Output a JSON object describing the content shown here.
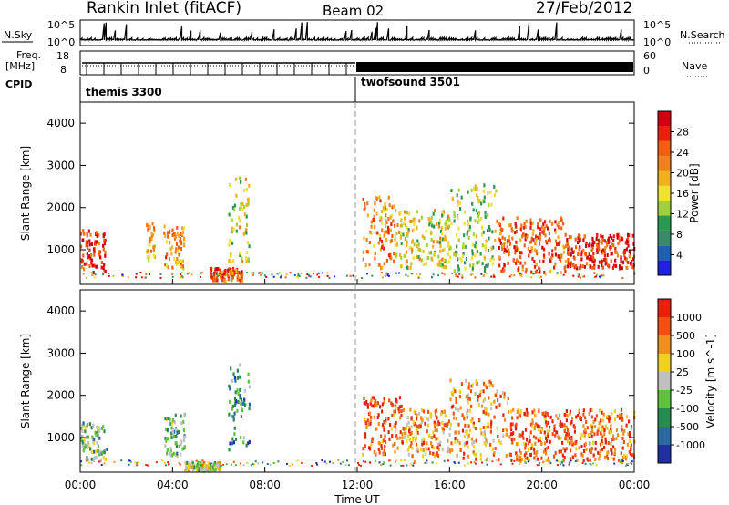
{
  "header": {
    "title": "Rankin Inlet (fitACF)",
    "beam": "Beam 02",
    "date": "27/Feb/2012"
  },
  "top_panels": {
    "nsky_label": "N.Sky",
    "nsearch_label": "N.Search",
    "nsky_ticks": [
      "10^5",
      "10^0"
    ],
    "nsearch_ticks": [
      "10^5",
      "10^0"
    ],
    "freq_label_top": "Freq.",
    "freq_label_bottom": "[MHz]",
    "freq_ticks": [
      "18",
      "8"
    ],
    "nave_label": "Nave",
    "nave_ticks": [
      "60",
      "0"
    ],
    "cpid_label": "CPID",
    "cpid_segments": [
      "themis 3300",
      "twofsound 3501"
    ]
  },
  "x_axis": {
    "label": "Time UT",
    "ticks": [
      "00:00",
      "04:00",
      "08:00",
      "12:00",
      "16:00",
      "20:00",
      "00:00"
    ]
  },
  "chart_data": [
    {
      "type": "heatmap",
      "panel": "power",
      "ylabel": "Slant Range [km]",
      "yticks": [
        1000,
        2000,
        3000,
        4000
      ],
      "ylim": [
        180,
        4500
      ],
      "xlim_hours": [
        0,
        24
      ],
      "colorbar": {
        "label": "Power [dB]",
        "ticks": [
          "28",
          "24",
          "20",
          "16",
          "12",
          "8",
          "4"
        ],
        "colors": [
          "#2020e0",
          "#2060b0",
          "#3a8a6a",
          "#2a9a50",
          "#a0d040",
          "#f0e030",
          "#f0b020",
          "#f08020",
          "#f06010",
          "#e82010",
          "#d00010"
        ]
      },
      "regions": [
        {
          "t0": 0.0,
          "t1": 1.1,
          "r0": 500,
          "r1": 1500,
          "level": 9
        },
        {
          "t0": 2.8,
          "t1": 3.2,
          "r0": 800,
          "r1": 1700,
          "level": 6
        },
        {
          "t0": 3.6,
          "t1": 4.5,
          "r0": 600,
          "r1": 1600,
          "level": 7
        },
        {
          "t0": 5.6,
          "t1": 7.0,
          "r0": 300,
          "r1": 600,
          "level": 8
        },
        {
          "t0": 6.4,
          "t1": 7.3,
          "r0": 700,
          "r1": 2800,
          "level": 5
        },
        {
          "t0": 12.2,
          "t1": 13.6,
          "r0": 600,
          "r1": 2300,
          "level": 7
        },
        {
          "t0": 13.6,
          "t1": 16.0,
          "r0": 600,
          "r1": 2000,
          "level": 5
        },
        {
          "t0": 16.0,
          "t1": 18.0,
          "r0": 500,
          "r1": 2600,
          "level": 4
        },
        {
          "t0": 18.0,
          "t1": 21.0,
          "r0": 500,
          "r1": 1800,
          "level": 8
        },
        {
          "t0": 21.0,
          "t1": 24.0,
          "r0": 600,
          "r1": 1400,
          "level": 9
        }
      ]
    },
    {
      "type": "heatmap",
      "panel": "velocity",
      "ylabel": "Slant Range [km]",
      "yticks": [
        1000,
        2000,
        3000,
        4000
      ],
      "ylim": [
        180,
        4500
      ],
      "xlim_hours": [
        0,
        24
      ],
      "colorbar": {
        "label": "Velocity [m s^-1]",
        "ticks": [
          "1000",
          "500",
          "100",
          "25",
          "-25",
          "-100",
          "-500",
          "-1000"
        ],
        "colors": [
          "#2030a0",
          "#2a6aa0",
          "#2a8a50",
          "#60c040",
          "#c0c0c0",
          "#f0d020",
          "#f09020",
          "#f05010",
          "#e82010"
        ]
      },
      "regions": [
        {
          "t0": 0.0,
          "t1": 1.1,
          "r0": 500,
          "r1": 1400,
          "level": 3
        },
        {
          "t0": 3.6,
          "t1": 4.5,
          "r0": 600,
          "r1": 1600,
          "level": 3
        },
        {
          "t0": 4.5,
          "t1": 6.0,
          "r0": 250,
          "r1": 450,
          "level": 4
        },
        {
          "t0": 6.4,
          "t1": 7.3,
          "r0": 700,
          "r1": 2800,
          "level": 2
        },
        {
          "t0": 12.2,
          "t1": 14.0,
          "r0": 600,
          "r1": 2000,
          "level": 7
        },
        {
          "t0": 14.0,
          "t1": 16.0,
          "r0": 600,
          "r1": 1700,
          "level": 6
        },
        {
          "t0": 16.0,
          "t1": 18.5,
          "r0": 500,
          "r1": 2400,
          "level": 6
        },
        {
          "t0": 18.5,
          "t1": 24.0,
          "r0": 500,
          "r1": 1700,
          "level": 7
        }
      ]
    }
  ]
}
